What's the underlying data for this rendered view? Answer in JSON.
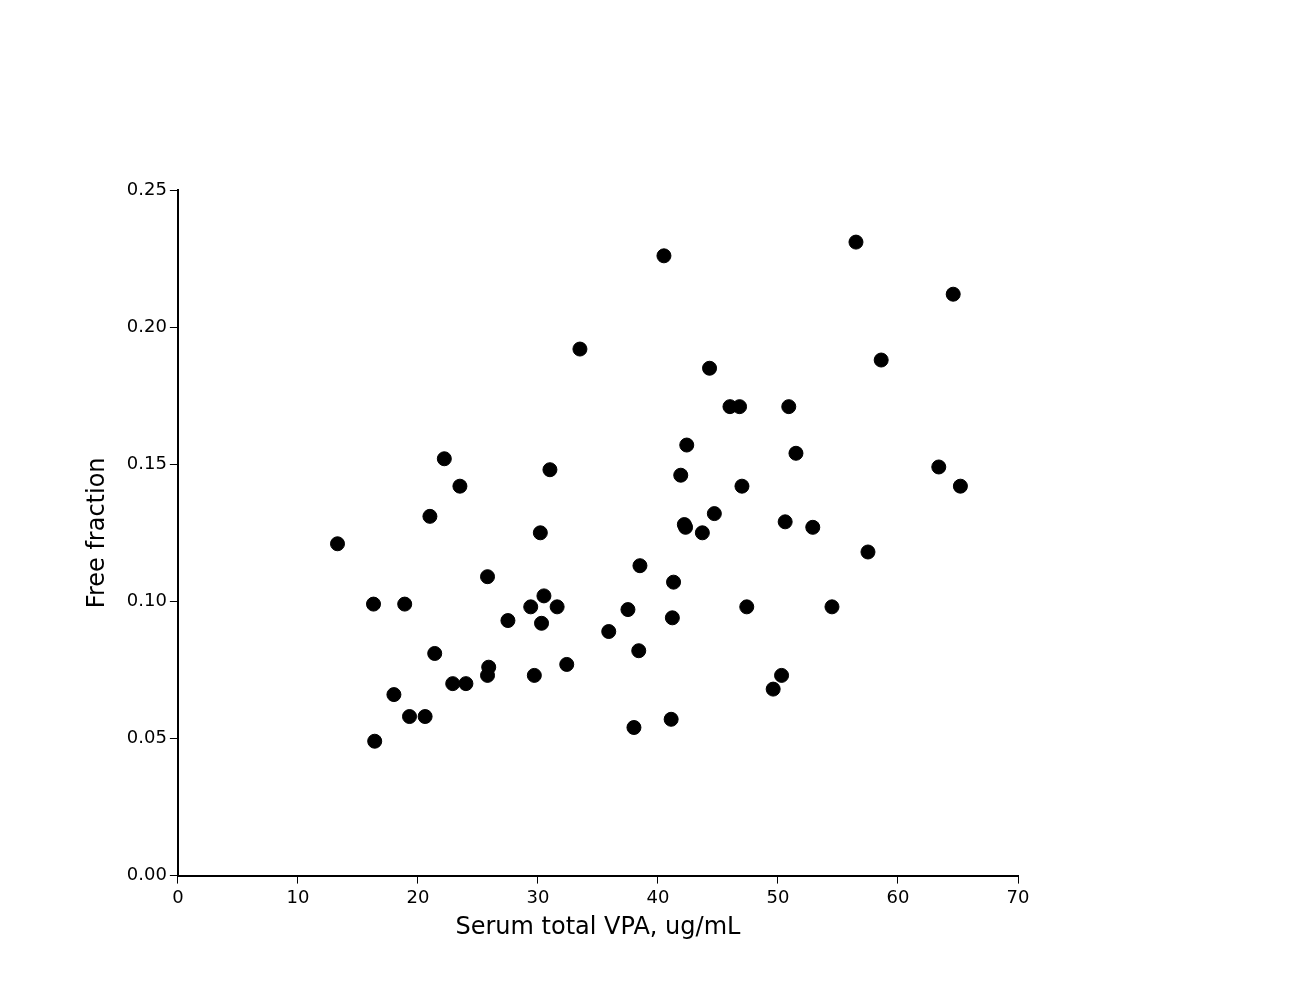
{
  "chart_data": {
    "type": "scatter",
    "xlabel": "Serum total VPA, ug/mL",
    "ylabel": "Free fraction",
    "x": [
      13.3,
      16.3,
      16.4,
      18.0,
      18.9,
      19.3,
      20.6,
      21.0,
      21.4,
      22.2,
      22.9,
      23.5,
      24.0,
      25.8,
      25.8,
      25.9,
      27.5,
      29.4,
      29.7,
      30.2,
      30.3,
      30.5,
      31.0,
      31.6,
      32.4,
      33.5,
      35.9,
      37.5,
      38.0,
      38.4,
      38.5,
      40.5,
      41.1,
      41.2,
      41.3,
      41.9,
      42.2,
      42.3,
      42.4,
      43.7,
      44.3,
      44.7,
      46.0,
      46.8,
      47.0,
      47.4,
      49.6,
      50.3,
      50.6,
      50.9,
      51.5,
      52.9,
      54.5,
      56.5,
      57.5,
      58.6,
      63.4,
      64.6,
      65.2
    ],
    "series": [
      {
        "color": "#000000",
        "values": [
          0.121,
          0.099,
          0.049,
          0.066,
          0.099,
          0.058,
          0.058,
          0.131,
          0.081,
          0.152,
          0.07,
          0.142,
          0.07,
          0.109,
          0.073,
          0.076,
          0.093,
          0.098,
          0.073,
          0.125,
          0.092,
          0.102,
          0.148,
          0.098,
          0.077,
          0.192,
          0.089,
          0.097,
          0.054,
          0.082,
          0.113,
          0.226,
          0.057,
          0.094,
          0.107,
          0.146,
          0.128,
          0.127,
          0.157,
          0.125,
          0.185,
          0.132,
          0.171,
          0.171,
          0.142,
          0.098,
          0.068,
          0.073,
          0.129,
          0.171,
          0.154,
          0.127,
          0.098,
          0.231,
          0.118,
          0.188,
          0.149,
          0.212,
          0.142
        ]
      }
    ],
    "xlim": [
      0,
      70
    ],
    "xticks": [
      0,
      10,
      20,
      30,
      40,
      50,
      60,
      70
    ],
    "ylim": [
      0,
      0.25
    ],
    "yticks": [
      {
        "value": 0,
        "label": "0.00"
      },
      {
        "value": 0.05,
        "label": "0.05"
      },
      {
        "value": 0.1,
        "label": "0.10"
      },
      {
        "value": 0.15,
        "label": "0.15"
      },
      {
        "value": 0.2,
        "label": "0.20"
      },
      {
        "value": 0.25,
        "label": "0.25"
      }
    ],
    "marker": "circle",
    "grid": false,
    "legend": false
  }
}
